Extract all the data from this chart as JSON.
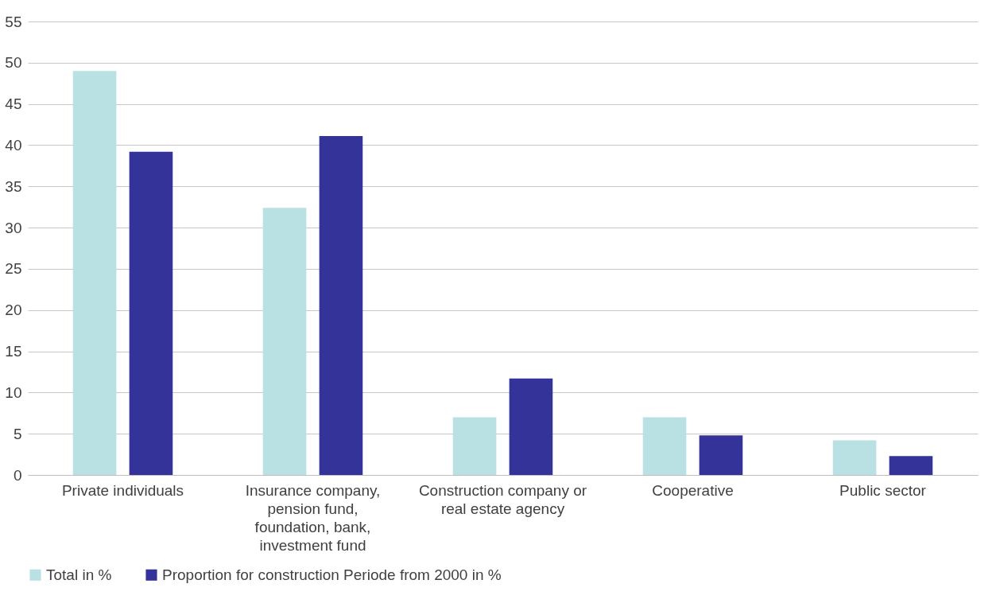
{
  "chart_data": {
    "type": "bar",
    "categories": [
      "Private individuals",
      "Insurance company, pension fund, foundation, bank, investment fund",
      "Construction company or real estate agency",
      "Cooperative",
      "Public sector"
    ],
    "series": [
      {
        "name": "Total in %",
        "color": "#b9e0e3",
        "values": [
          49,
          32.4,
          7,
          7,
          4.2
        ]
      },
      {
        "name": "Proportion for construction Periode from 2000 in %",
        "color": "#333399",
        "values": [
          39.2,
          41.1,
          11.7,
          4.8,
          2.3
        ]
      }
    ],
    "ylim": [
      0,
      55
    ],
    "yticks": [
      0,
      5,
      10,
      15,
      20,
      25,
      30,
      35,
      40,
      45,
      50,
      55
    ],
    "grid": "y",
    "legend": "bottom"
  }
}
